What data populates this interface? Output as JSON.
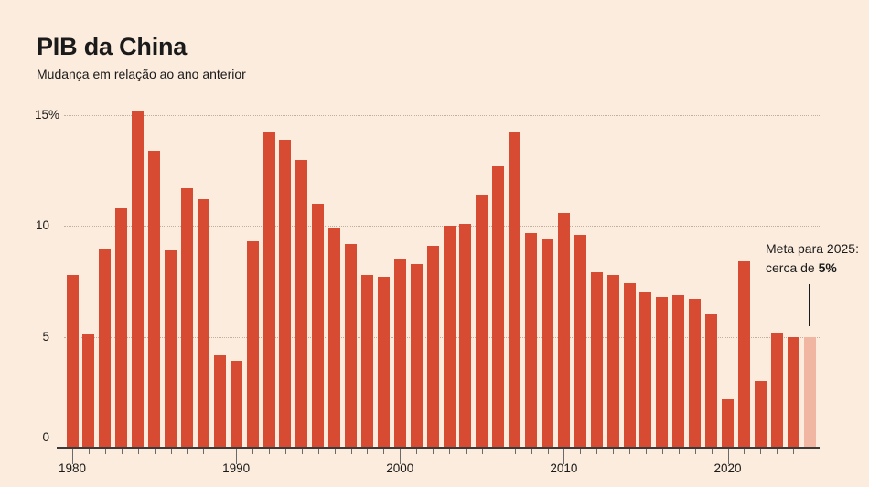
{
  "title": "PIB da China",
  "subtitle": "Mudança em relação ao ano anterior",
  "annotation": {
    "line1": "Meta para 2025:",
    "line2_prefix": "cerca de ",
    "line2_bold": "5%"
  },
  "y_axis": {
    "ticks": [
      {
        "value": 0,
        "label": "0"
      },
      {
        "value": 5,
        "label": "5"
      },
      {
        "value": 10,
        "label": "10"
      },
      {
        "value": 15,
        "label": "15%"
      }
    ]
  },
  "x_axis": {
    "decade_labels": [
      "1980",
      "1990",
      "2000",
      "2010",
      "2020"
    ]
  },
  "colors": {
    "background": "#fcecdd",
    "bar": "#d74b32",
    "bar_target": "#f1b6a1",
    "axis_line": "#3a3a3a",
    "tick": "#6a6a6a",
    "gridline": "#c2b09e",
    "text": "#1a1a1a",
    "annotation_line": "#1a1a1a"
  },
  "chart_data": {
    "type": "bar",
    "title": "PIB da China",
    "subtitle": "Mudança em relação ao ano anterior",
    "xlabel": "",
    "ylabel": "",
    "ylim": [
      0,
      15.5
    ],
    "grid": "dotted horizontal at 5, 10, 15",
    "annotation": "Meta para 2025: cerca de 5%",
    "target_year": 2025,
    "x": [
      1980,
      1981,
      1982,
      1983,
      1984,
      1985,
      1986,
      1987,
      1988,
      1989,
      1990,
      1991,
      1992,
      1993,
      1994,
      1995,
      1996,
      1997,
      1998,
      1999,
      2000,
      2001,
      2002,
      2003,
      2004,
      2005,
      2006,
      2007,
      2008,
      2009,
      2010,
      2011,
      2012,
      2013,
      2014,
      2015,
      2016,
      2017,
      2018,
      2019,
      2020,
      2021,
      2022,
      2023,
      2024,
      2025
    ],
    "values": [
      7.8,
      5.1,
      9.0,
      10.8,
      15.2,
      13.4,
      8.9,
      11.7,
      11.2,
      4.2,
      3.9,
      9.3,
      14.2,
      13.9,
      13.0,
      11.0,
      9.9,
      9.2,
      7.8,
      7.7,
      8.5,
      8.3,
      9.1,
      10.0,
      10.1,
      11.4,
      12.7,
      14.2,
      9.7,
      9.4,
      10.6,
      9.6,
      7.9,
      7.8,
      7.4,
      7.0,
      6.8,
      6.9,
      6.7,
      6.0,
      2.2,
      8.4,
      3.0,
      5.2,
      5.0,
      5.0
    ]
  }
}
